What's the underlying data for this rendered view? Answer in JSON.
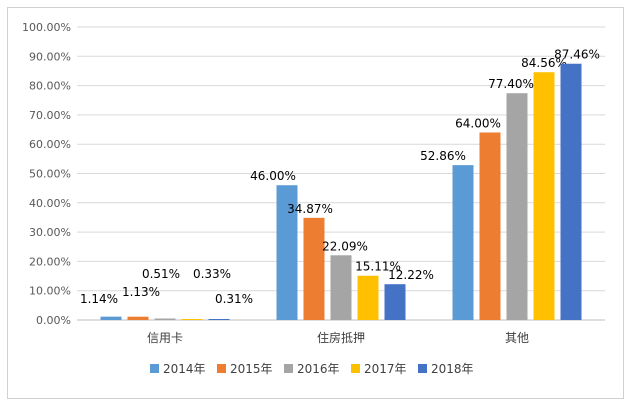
{
  "chart_data": {
    "type": "bar",
    "categories": [
      "信用卡",
      "住房抵押",
      "其他"
    ],
    "series": [
      {
        "name": "2014年",
        "color": "#5b9bd5",
        "values": [
          1.14,
          46.0,
          52.86
        ],
        "labels": [
          "1.14%",
          "46.00%",
          "52.86%"
        ]
      },
      {
        "name": "2015年",
        "color": "#ed7d31",
        "values": [
          1.13,
          34.87,
          64.0
        ],
        "labels": [
          "1.13%",
          "34.87%",
          "64.00%"
        ]
      },
      {
        "name": "2016年",
        "color": "#a5a5a5",
        "values": [
          0.51,
          22.09,
          77.4
        ],
        "labels": [
          "0.51%",
          "22.09%",
          "77.40%"
        ]
      },
      {
        "name": "2017年",
        "color": "#ffc000",
        "values": [
          0.33,
          15.11,
          84.56
        ],
        "labels": [
          "0.33%",
          "15.11%",
          "84.56%"
        ]
      },
      {
        "name": "2018年",
        "color": "#4472c4",
        "values": [
          0.31,
          12.22,
          87.46
        ],
        "labels": [
          "0.31%",
          "12.22%",
          "87.46%"
        ]
      }
    ],
    "yticks": [
      "0.00%",
      "10.00%",
      "20.00%",
      "30.00%",
      "40.00%",
      "50.00%",
      "60.00%",
      "70.00%",
      "80.00%",
      "90.00%",
      "100.00%"
    ],
    "ylim": [
      0,
      100
    ],
    "grid": true,
    "legend": "bottom",
    "title": "",
    "xlabel": "",
    "ylabel": ""
  }
}
